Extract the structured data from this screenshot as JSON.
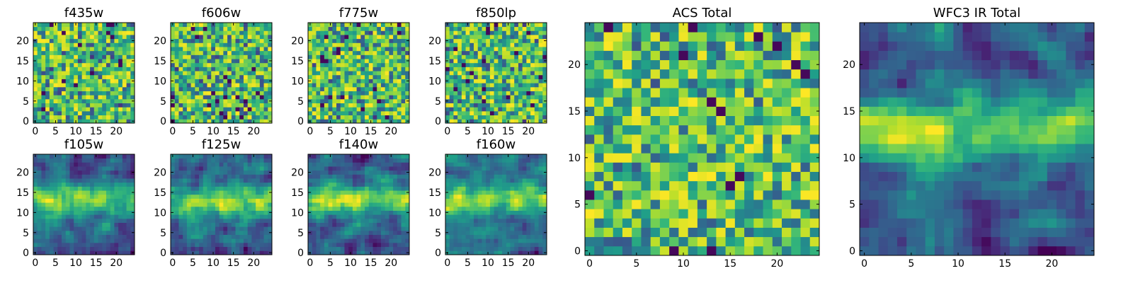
{
  "chart_data": [
    {
      "type": "heatmap",
      "title": "f435w",
      "grid_size": 25,
      "xticks": [
        0,
        5,
        10,
        15,
        20
      ],
      "yticks": [
        0,
        5,
        10,
        15,
        20
      ],
      "xlim": [
        -0.5,
        24.5
      ],
      "ylim": [
        -0.5,
        24.5
      ],
      "colormap": "viridis",
      "texture": "pixel noise",
      "seed": 11
    },
    {
      "type": "heatmap",
      "title": "f606w",
      "grid_size": 25,
      "xticks": [
        0,
        5,
        10,
        15,
        20
      ],
      "yticks": [
        0,
        5,
        10,
        15,
        20
      ],
      "xlim": [
        -0.5,
        24.5
      ],
      "ylim": [
        -0.5,
        24.5
      ],
      "colormap": "viridis",
      "texture": "pixel noise",
      "seed": 23
    },
    {
      "type": "heatmap",
      "title": "f775w",
      "grid_size": 25,
      "xticks": [
        0,
        5,
        10,
        15,
        20
      ],
      "yticks": [
        0,
        5,
        10,
        15,
        20
      ],
      "xlim": [
        -0.5,
        24.5
      ],
      "ylim": [
        -0.5,
        24.5
      ],
      "colormap": "viridis",
      "texture": "pixel noise",
      "seed": 37
    },
    {
      "type": "heatmap",
      "title": "f850lp",
      "grid_size": 25,
      "xticks": [
        0,
        5,
        10,
        15,
        20
      ],
      "yticks": [
        0,
        5,
        10,
        15,
        20
      ],
      "xlim": [
        -0.5,
        24.5
      ],
      "ylim": [
        -0.5,
        24.5
      ],
      "colormap": "viridis",
      "texture": "pixel noise",
      "seed": 41
    },
    {
      "type": "heatmap",
      "title": "f105w",
      "grid_size": 25,
      "xticks": [
        0,
        5,
        10,
        15,
        20
      ],
      "yticks": [
        0,
        5,
        10,
        15,
        20
      ],
      "xlim": [
        -0.5,
        24.5
      ],
      "ylim": [
        -0.5,
        24.5
      ],
      "colormap": "viridis",
      "texture": "smooth with bright band near y=13",
      "seed": 53
    },
    {
      "type": "heatmap",
      "title": "f125w",
      "grid_size": 25,
      "xticks": [
        0,
        5,
        10,
        15,
        20
      ],
      "yticks": [
        0,
        5,
        10,
        15,
        20
      ],
      "xlim": [
        -0.5,
        24.5
      ],
      "ylim": [
        -0.5,
        24.5
      ],
      "colormap": "viridis",
      "texture": "smooth with bright band near y=13",
      "seed": 67
    },
    {
      "type": "heatmap",
      "title": "f140w",
      "grid_size": 25,
      "xticks": [
        0,
        5,
        10,
        15,
        20
      ],
      "yticks": [
        0,
        5,
        10,
        15,
        20
      ],
      "xlim": [
        -0.5,
        24.5
      ],
      "ylim": [
        -0.5,
        24.5
      ],
      "colormap": "viridis",
      "texture": "smooth with bright band near y=13",
      "seed": 71
    },
    {
      "type": "heatmap",
      "title": "f160w",
      "grid_size": 25,
      "xticks": [
        0,
        5,
        10,
        15,
        20
      ],
      "yticks": [
        0,
        5,
        10,
        15,
        20
      ],
      "xlim": [
        -0.5,
        24.5
      ],
      "ylim": [
        -0.5,
        24.5
      ],
      "colormap": "viridis",
      "texture": "smooth with bright band near y=13",
      "seed": 83
    },
    {
      "type": "heatmap",
      "title": "ACS Total",
      "grid_size": 25,
      "xticks": [
        0,
        5,
        10,
        15,
        20
      ],
      "yticks": [
        0,
        5,
        10,
        15,
        20
      ],
      "xlim": [
        -0.5,
        24.5
      ],
      "ylim": [
        -0.5,
        24.5
      ],
      "colormap": "viridis",
      "texture": "pixel noise, mostly bright",
      "seed": 97
    },
    {
      "type": "heatmap",
      "title": "WFC3 IR Total",
      "grid_size": 25,
      "xticks": [
        0,
        5,
        10,
        15,
        20
      ],
      "yticks": [
        0,
        5,
        10,
        15,
        20
      ],
      "xlim": [
        -0.5,
        24.5
      ],
      "ylim": [
        -0.5,
        24.5
      ],
      "colormap": "viridis",
      "texture": "smooth with bright band near y=13",
      "seed": 101
    }
  ]
}
